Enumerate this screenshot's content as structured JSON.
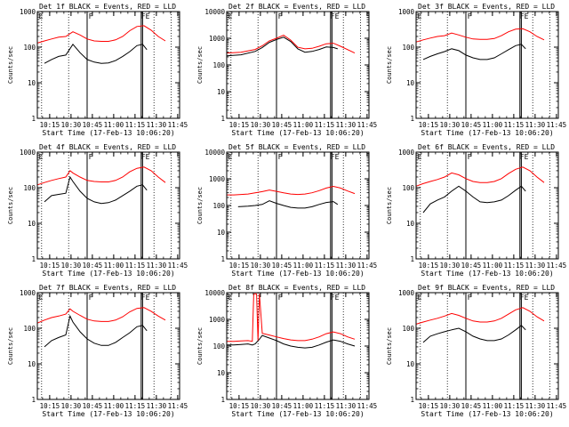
{
  "chart_data": {
    "type": "line",
    "shared": {
      "xlabel": "Start Time (17-Feb-13 10:06:20)",
      "ylabel": "Counts/sec",
      "x_tick_labels": [
        "10:15",
        "10:30",
        "10:45",
        "11:00",
        "11:15",
        "11:30",
        "11:45"
      ],
      "x_tick_minutes": [
        8.67,
        23.67,
        38.67,
        53.67,
        68.67,
        83.67,
        98.67
      ],
      "xlim_minutes": [
        0,
        100
      ],
      "y_scale": "log",
      "colors": {
        "events": "#000000",
        "lld": "#ff0000"
      },
      "markers": {
        "dotted_minutes": [
          3,
          22,
          82,
          94
        ],
        "solid_minutes": [
          35,
          73,
          74
        ],
        "flag_labels": [
          {
            "text": "E",
            "minute": 1
          },
          {
            "text": "F",
            "minute": 36
          },
          {
            "text": "FE",
            "minute": 73
          }
        ]
      }
    },
    "panels": [
      {
        "title": "Det 1f BLACK = Events, RED = LLD",
        "ylim": [
          1,
          1000
        ],
        "y_tick_labels": [
          "1",
          "10",
          "100",
          "1000"
        ],
        "series": [
          {
            "key": "events",
            "x": [
              5,
              10,
              15,
              20,
              25,
              30,
              35,
              40,
              45,
              50,
              55,
              60,
              65,
              70,
              74,
              77
            ],
            "y": [
              35,
              45,
              55,
              60,
              120,
              70,
              45,
              38,
              35,
              36,
              42,
              55,
              75,
              110,
              120,
              85
            ]
          },
          {
            "key": "lld",
            "x": [
              0,
              5,
              10,
              15,
              20,
              25,
              30,
              35,
              40,
              45,
              50,
              55,
              60,
              65,
              70,
              75,
              80,
              85,
              90
            ],
            "y": [
              130,
              150,
              170,
              190,
              200,
              270,
              220,
              170,
              150,
              145,
              145,
              160,
              200,
              290,
              380,
              400,
              300,
              200,
              150
            ]
          }
        ]
      },
      {
        "title": "Det 2f BLACK = Events, RED = LLD",
        "ylim": [
          1,
          10000
        ],
        "y_tick_labels": [
          "1",
          "10",
          "100",
          "1000",
          "10000"
        ],
        "series": [
          {
            "key": "events",
            "x": [
              0,
              10,
              20,
              25,
              30,
              35,
              40,
              45,
              50,
              55,
              60,
              65,
              70,
              75,
              78
            ],
            "y": [
              220,
              240,
              320,
              450,
              700,
              900,
              1100,
              750,
              400,
              300,
              320,
              380,
              470,
              450,
              400
            ]
          },
          {
            "key": "lld",
            "x": [
              0,
              10,
              20,
              25,
              30,
              35,
              40,
              45,
              50,
              55,
              60,
              65,
              70,
              75,
              80,
              90
            ],
            "y": [
              280,
              300,
              380,
              520,
              800,
              1000,
              1300,
              850,
              460,
              400,
              420,
              500,
              620,
              650,
              500,
              280
            ]
          }
        ]
      },
      {
        "title": "Det 3f BLACK = Events, RED = LLD",
        "ylim": [
          1,
          1000
        ],
        "y_tick_labels": [
          "1",
          "10",
          "100",
          "1000"
        ],
        "series": [
          {
            "key": "events",
            "x": [
              5,
              10,
              15,
              20,
              25,
              30,
              35,
              40,
              45,
              50,
              55,
              60,
              65,
              70,
              74,
              77
            ],
            "y": [
              45,
              55,
              65,
              75,
              90,
              80,
              60,
              50,
              45,
              45,
              50,
              65,
              85,
              110,
              120,
              90
            ]
          },
          {
            "key": "lld",
            "x": [
              0,
              5,
              10,
              15,
              20,
              25,
              30,
              35,
              40,
              45,
              50,
              55,
              60,
              65,
              70,
              75,
              80,
              85,
              90
            ],
            "y": [
              140,
              160,
              180,
              200,
              210,
              250,
              220,
              190,
              170,
              165,
              165,
              175,
              210,
              270,
              320,
              330,
              270,
              200,
              160
            ]
          }
        ]
      },
      {
        "title": "Det 4f BLACK = Events, RED = LLD",
        "ylim": [
          1,
          1000
        ],
        "y_tick_labels": [
          "1",
          "10",
          "100",
          "1000"
        ],
        "series": [
          {
            "key": "events",
            "x": [
              5,
              10,
              15,
              20,
              23,
              25,
              30,
              35,
              40,
              45,
              50,
              55,
              60,
              65,
              70,
              74,
              77
            ],
            "y": [
              40,
              60,
              65,
              70,
              200,
              150,
              80,
              50,
              40,
              36,
              38,
              45,
              60,
              80,
              110,
              120,
              85
            ]
          },
          {
            "key": "lld",
            "x": [
              0,
              5,
              10,
              15,
              20,
              23,
              25,
              30,
              35,
              40,
              45,
              50,
              55,
              60,
              65,
              70,
              75,
              80,
              85,
              90
            ],
            "y": [
              120,
              140,
              160,
              180,
              200,
              300,
              260,
              200,
              160,
              150,
              145,
              145,
              160,
              200,
              280,
              350,
              380,
              300,
              200,
              140
            ]
          }
        ]
      },
      {
        "title": "Det 5f BLACK = Events, RED = LLD",
        "ylim": [
          1,
          10000
        ],
        "y_tick_labels": [
          "1",
          "10",
          "100",
          "1000",
          "10000"
        ],
        "series": [
          {
            "key": "events",
            "x": [
              8,
              15,
              20,
              25,
              30,
              35,
              40,
              45,
              50,
              55,
              60,
              65,
              70,
              75,
              78
            ],
            "y": [
              90,
              95,
              100,
              110,
              150,
              120,
              100,
              85,
              80,
              80,
              90,
              110,
              130,
              140,
              110
            ]
          },
          {
            "key": "lld",
            "x": [
              0,
              5,
              10,
              15,
              20,
              25,
              30,
              35,
              40,
              45,
              50,
              55,
              60,
              65,
              70,
              75,
              80,
              85,
              90
            ],
            "y": [
              250,
              250,
              260,
              270,
              300,
              330,
              380,
              340,
              300,
              270,
              260,
              270,
              300,
              360,
              450,
              520,
              450,
              350,
              280
            ]
          }
        ]
      },
      {
        "title": "Det 6f BLACK = Events, RED = LLD",
        "ylim": [
          1,
          1000
        ],
        "y_tick_labels": [
          "1",
          "10",
          "100",
          "1000"
        ],
        "series": [
          {
            "key": "events",
            "x": [
              5,
              10,
              15,
              20,
              25,
              30,
              35,
              40,
              45,
              50,
              55,
              60,
              65,
              70,
              74,
              77
            ],
            "y": [
              20,
              35,
              45,
              55,
              80,
              110,
              80,
              55,
              40,
              38,
              40,
              45,
              60,
              85,
              110,
              80
            ]
          },
          {
            "key": "lld",
            "x": [
              0,
              5,
              10,
              15,
              20,
              25,
              30,
              35,
              40,
              45,
              50,
              55,
              60,
              65,
              70,
              75,
              80,
              85,
              90
            ],
            "y": [
              110,
              130,
              150,
              170,
              200,
              260,
              230,
              180,
              150,
              140,
              140,
              150,
              180,
              250,
              330,
              380,
              300,
              200,
              140
            ]
          }
        ]
      },
      {
        "title": "Det 7f BLACK = Events, RED = LLD",
        "ylim": [
          1,
          1000
        ],
        "y_tick_labels": [
          "1",
          "10",
          "100",
          "1000"
        ],
        "series": [
          {
            "key": "events",
            "x": [
              5,
              10,
              15,
              20,
              23,
              25,
              30,
              35,
              40,
              45,
              50,
              55,
              60,
              65,
              70,
              74,
              77
            ],
            "y": [
              30,
              45,
              55,
              65,
              220,
              150,
              80,
              50,
              38,
              33,
              33,
              40,
              55,
              75,
              110,
              120,
              85
            ]
          },
          {
            "key": "lld",
            "x": [
              0,
              5,
              10,
              15,
              20,
              23,
              25,
              30,
              35,
              40,
              45,
              50,
              55,
              60,
              65,
              70,
              75,
              80,
              85,
              90
            ],
            "y": [
              140,
              170,
              200,
              220,
              250,
              350,
              300,
              230,
              180,
              160,
              155,
              155,
              170,
              210,
              290,
              360,
              380,
              300,
              220,
              170
            ]
          }
        ]
      },
      {
        "title": "Det 8f BLACK = Events, RED = LLD",
        "ylim": [
          1,
          10000
        ],
        "y_tick_labels": [
          "1",
          "10",
          "100",
          "1000",
          "10000"
        ],
        "series": [
          {
            "key": "events",
            "x": [
              0,
              5,
              10,
              15,
              18,
              20,
              23,
              25,
              30,
              35,
              40,
              45,
              50,
              55,
              60,
              65,
              70,
              75,
              80,
              85,
              90
            ],
            "y": [
              110,
              110,
              115,
              120,
              110,
              120,
              180,
              250,
              200,
              160,
              120,
              100,
              90,
              85,
              90,
              110,
              140,
              170,
              150,
              120,
              100
            ]
          },
          {
            "key": "lld",
            "x": [
              0,
              5,
              10,
              15,
              18,
              19,
              20,
              21,
              22,
              23,
              25,
              30,
              35,
              40,
              45,
              50,
              55,
              60,
              65,
              70,
              75,
              80,
              85,
              90
            ],
            "y": [
              150,
              150,
              155,
              160,
              150,
              9000,
              9000,
              9000,
              160,
              9000,
              300,
              260,
              220,
              190,
              170,
              160,
              160,
              180,
              220,
              290,
              340,
              290,
              220,
              180
            ]
          }
        ]
      },
      {
        "title": "Det 9f BLACK = Events, RED = LLD",
        "ylim": [
          1,
          1000
        ],
        "y_tick_labels": [
          "1",
          "10",
          "100",
          "1000"
        ],
        "series": [
          {
            "key": "events",
            "x": [
              5,
              10,
              15,
              20,
              25,
              30,
              35,
              40,
              45,
              50,
              55,
              60,
              65,
              70,
              74,
              77
            ],
            "y": [
              40,
              60,
              70,
              80,
              90,
              100,
              80,
              60,
              50,
              45,
              45,
              50,
              65,
              90,
              120,
              90
            ]
          },
          {
            "key": "lld",
            "x": [
              0,
              5,
              10,
              15,
              20,
              25,
              30,
              35,
              40,
              45,
              50,
              55,
              60,
              65,
              70,
              75,
              80,
              85,
              90
            ],
            "y": [
              130,
              150,
              170,
              190,
              220,
              260,
              230,
              190,
              160,
              150,
              150,
              160,
              190,
              250,
              330,
              380,
              300,
              210,
              160
            ]
          }
        ]
      }
    ]
  }
}
